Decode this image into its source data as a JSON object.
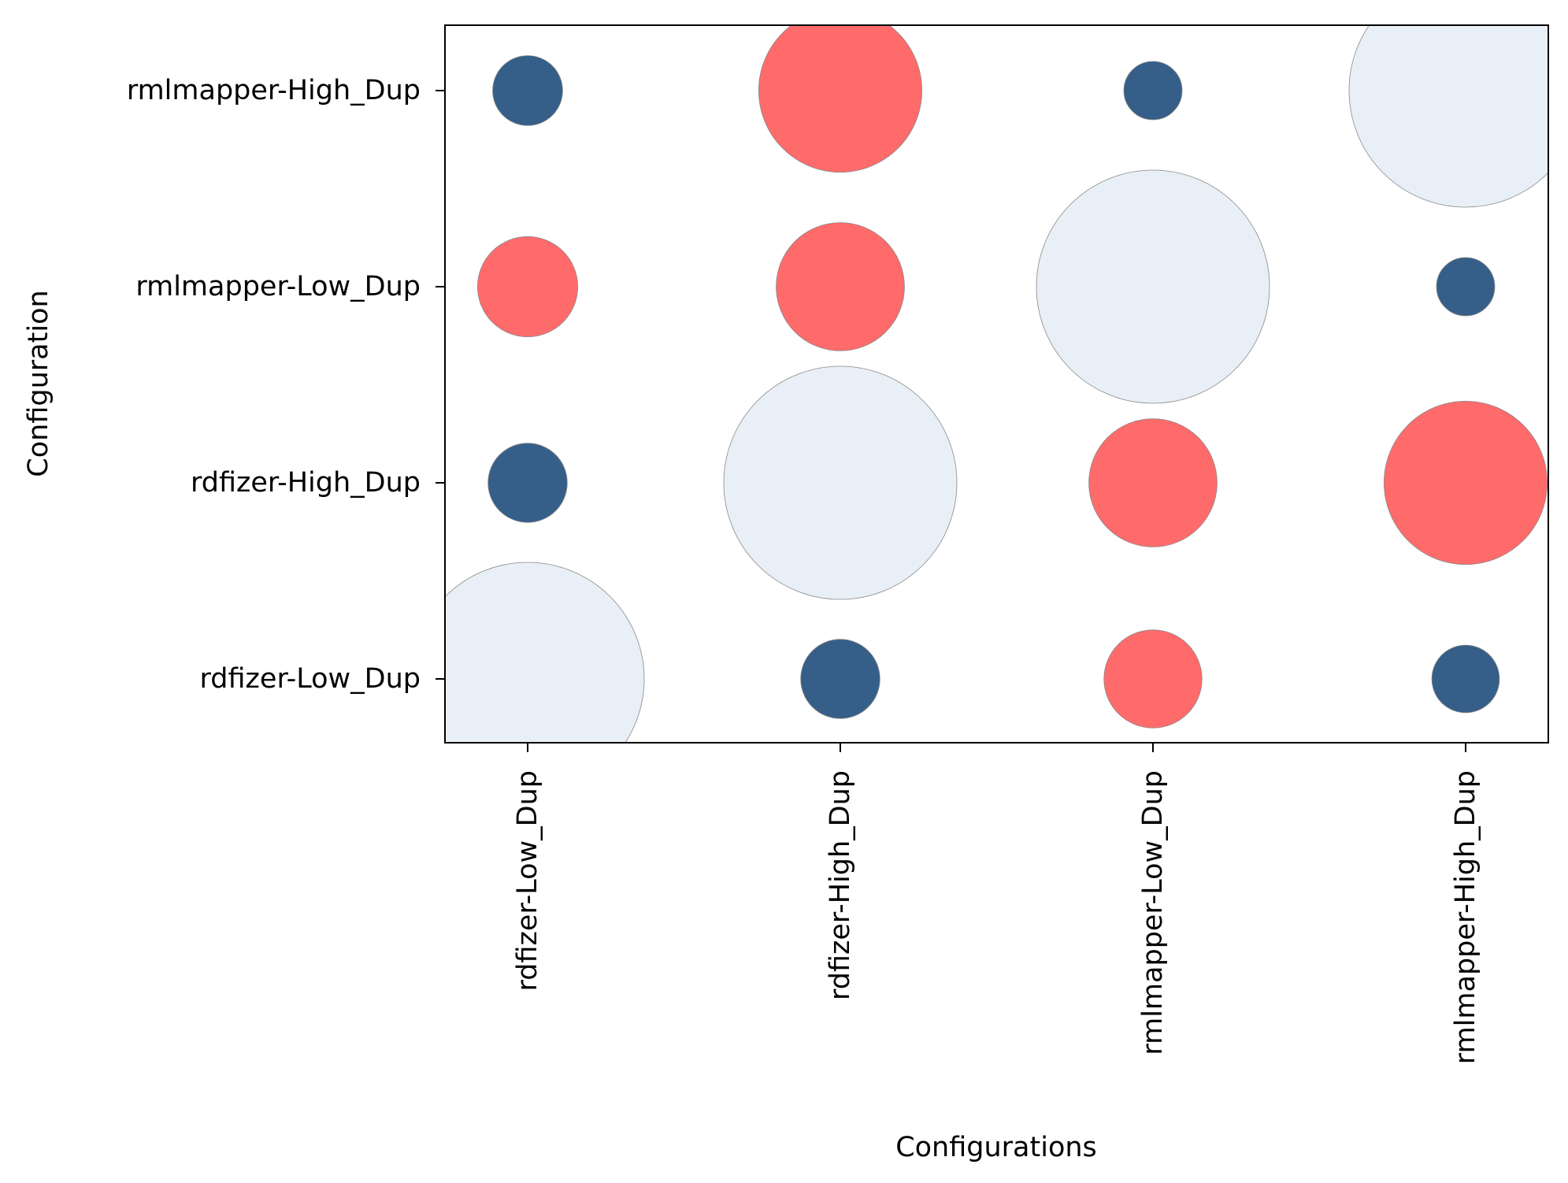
{
  "chart_data": {
    "type": "scatter",
    "subtype": "bubble-matrix",
    "title": "",
    "xlabel": "Configurations",
    "ylabel": "Configuration",
    "x_categories": [
      "rdfizer-Low_Dup",
      "rdfizer-High_Dup",
      "rmlmapper-Low_Dup",
      "rmlmapper-High_Dup"
    ],
    "y_categories": [
      "rdfizer-Low_Dup",
      "rdfizer-High_Dup",
      "rmlmapper-Low_Dup",
      "rmlmapper-High_Dup"
    ],
    "colors": {
      "self": "#e8eff6",
      "higher": "#ff6b6b",
      "lower": "#355f89",
      "edge": "#888888"
    },
    "points": [
      {
        "x": "rdfizer-Low_Dup",
        "y": "rdfizer-Low_Dup",
        "size": 1.0,
        "kind": "self"
      },
      {
        "x": "rdfizer-High_Dup",
        "y": "rdfizer-Low_Dup",
        "size": 0.34,
        "kind": "lower"
      },
      {
        "x": "rmlmapper-Low_Dup",
        "y": "rdfizer-Low_Dup",
        "size": 0.42,
        "kind": "higher"
      },
      {
        "x": "rmlmapper-High_Dup",
        "y": "rdfizer-Low_Dup",
        "size": 0.29,
        "kind": "lower"
      },
      {
        "x": "rdfizer-Low_Dup",
        "y": "rdfizer-High_Dup",
        "size": 0.34,
        "kind": "lower"
      },
      {
        "x": "rdfizer-High_Dup",
        "y": "rdfizer-High_Dup",
        "size": 1.0,
        "kind": "self"
      },
      {
        "x": "rmlmapper-Low_Dup",
        "y": "rdfizer-High_Dup",
        "size": 0.55,
        "kind": "higher"
      },
      {
        "x": "rmlmapper-High_Dup",
        "y": "rdfizer-High_Dup",
        "size": 0.7,
        "kind": "higher"
      },
      {
        "x": "rdfizer-Low_Dup",
        "y": "rmlmapper-Low_Dup",
        "size": 0.43,
        "kind": "higher"
      },
      {
        "x": "rdfizer-High_Dup",
        "y": "rmlmapper-Low_Dup",
        "size": 0.55,
        "kind": "higher"
      },
      {
        "x": "rmlmapper-Low_Dup",
        "y": "rmlmapper-Low_Dup",
        "size": 1.0,
        "kind": "self"
      },
      {
        "x": "rmlmapper-High_Dup",
        "y": "rmlmapper-Low_Dup",
        "size": 0.25,
        "kind": "lower"
      },
      {
        "x": "rdfizer-Low_Dup",
        "y": "rmlmapper-High_Dup",
        "size": 0.3,
        "kind": "lower"
      },
      {
        "x": "rdfizer-High_Dup",
        "y": "rmlmapper-High_Dup",
        "size": 0.7,
        "kind": "higher"
      },
      {
        "x": "rmlmapper-Low_Dup",
        "y": "rmlmapper-High_Dup",
        "size": 0.25,
        "kind": "lower"
      },
      {
        "x": "rmlmapper-High_Dup",
        "y": "rmlmapper-High_Dup",
        "size": 1.0,
        "kind": "self"
      }
    ],
    "grid": false,
    "legend": "none"
  }
}
